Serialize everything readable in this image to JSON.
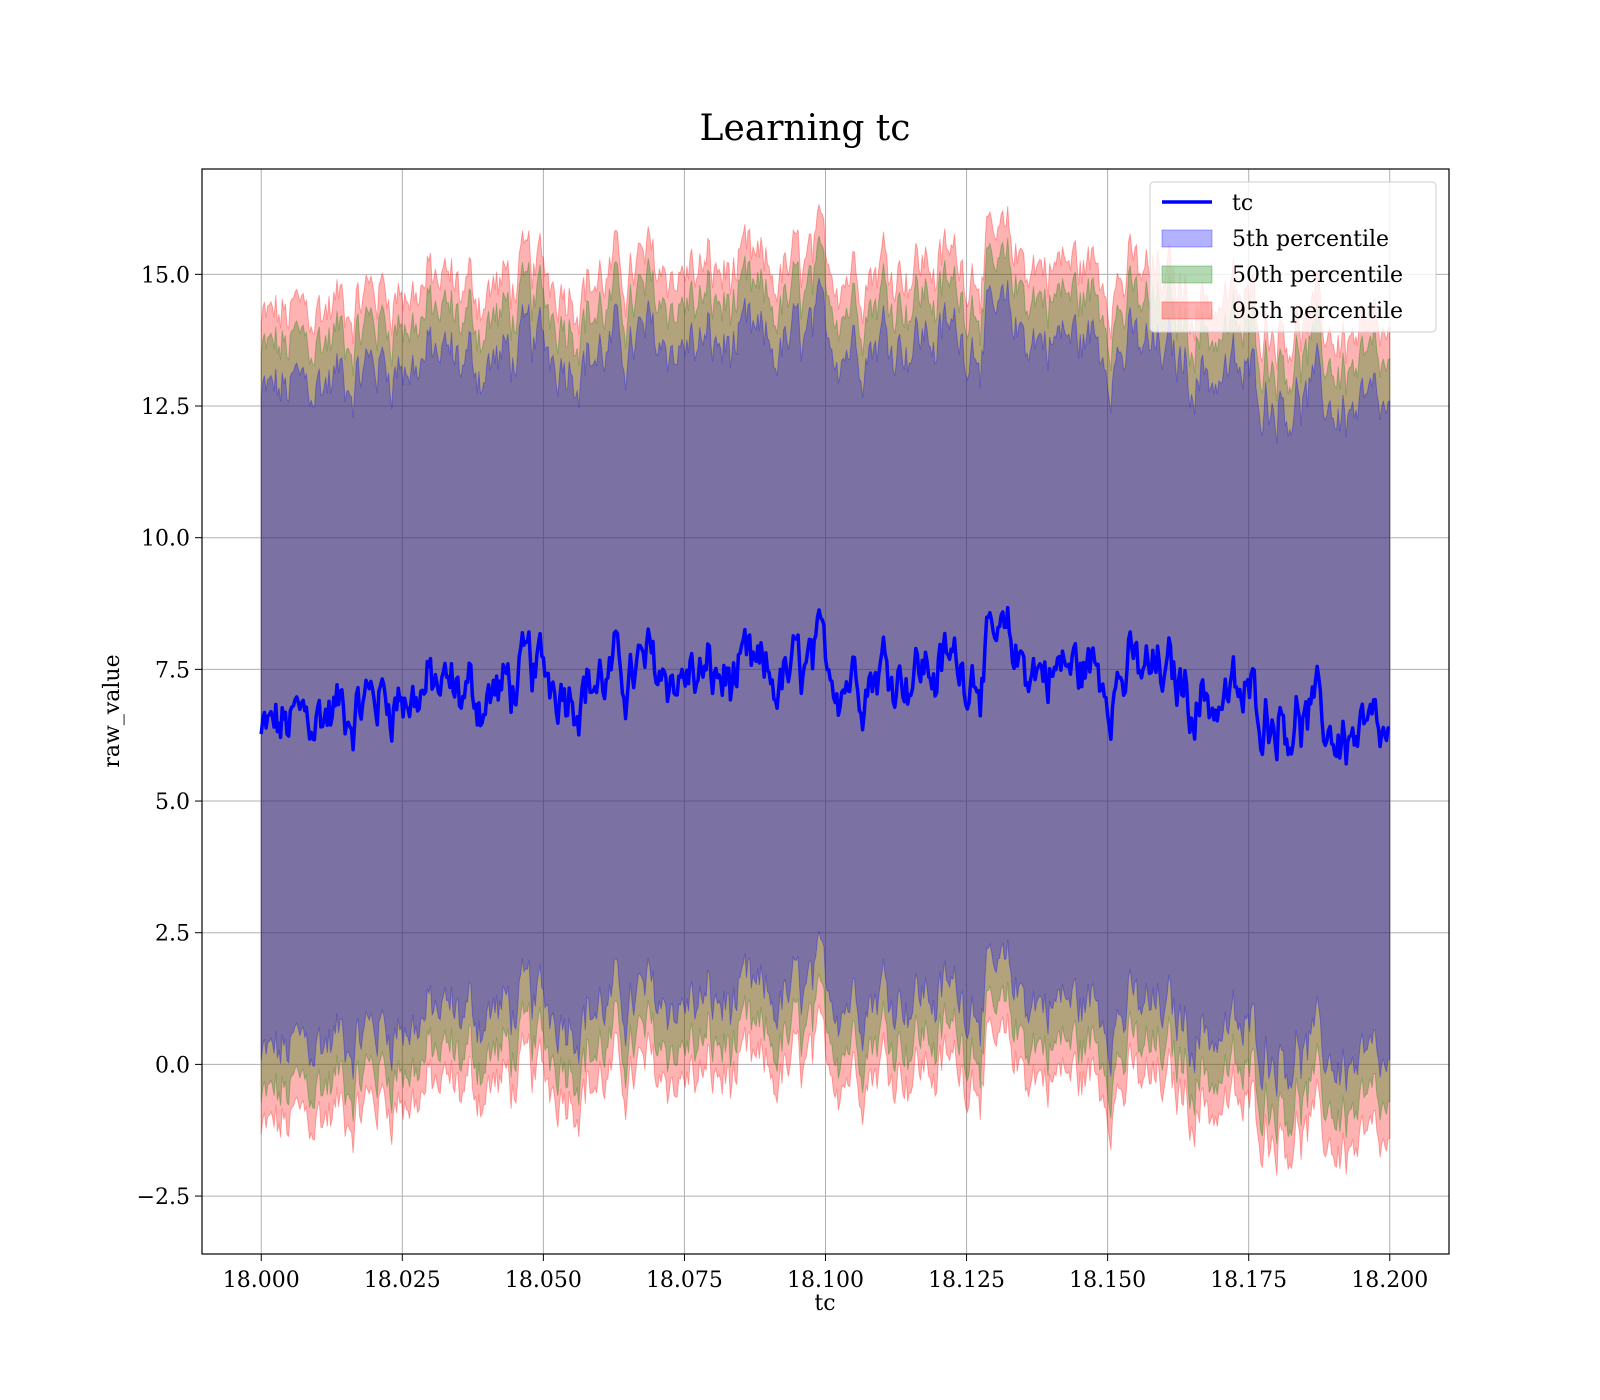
{
  "chart_data": {
    "type": "area",
    "title": "Learning tc",
    "xlabel": "tc",
    "ylabel": "raw_value",
    "xlim": [
      17.9895,
      18.2105
    ],
    "ylim": [
      -3.6,
      17.0
    ],
    "grid": true,
    "legend_position": "top-right",
    "x_ticks": [
      {
        "value": 18.0,
        "label": "18.000"
      },
      {
        "value": 18.025,
        "label": "18.025"
      },
      {
        "value": 18.05,
        "label": "18.050"
      },
      {
        "value": 18.075,
        "label": "18.075"
      },
      {
        "value": 18.1,
        "label": "18.100"
      },
      {
        "value": 18.125,
        "label": "18.125"
      },
      {
        "value": 18.15,
        "label": "18.150"
      },
      {
        "value": 18.175,
        "label": "18.175"
      },
      {
        "value": 18.2,
        "label": "18.200"
      }
    ],
    "y_ticks": [
      {
        "value": -2.5,
        "label": "−2.5"
      },
      {
        "value": 0.0,
        "label": "0.0"
      },
      {
        "value": 2.5,
        "label": "2.5"
      },
      {
        "value": 5.0,
        "label": "5.0"
      },
      {
        "value": 7.5,
        "label": "7.5"
      },
      {
        "value": 10.0,
        "label": "10.0"
      },
      {
        "value": 12.5,
        "label": "12.5"
      },
      {
        "value": 15.0,
        "label": "15.0"
      }
    ],
    "x": [
      18.0,
      18.01,
      18.02,
      18.03,
      18.04,
      18.05,
      18.06,
      18.07,
      18.08,
      18.09,
      18.1,
      18.11,
      18.12,
      18.13,
      18.14,
      18.15,
      18.16,
      18.17,
      18.18,
      18.19,
      18.2
    ],
    "series": [
      {
        "name": "tc",
        "kind": "line",
        "color": "#0000ff",
        "values": [
          6.2,
          6.6,
          7.0,
          7.1,
          7.0,
          7.4,
          7.3,
          7.45,
          7.3,
          7.2,
          7.5,
          7.6,
          7.5,
          7.8,
          7.5,
          7.5,
          7.3,
          6.9,
          6.8,
          6.3,
          5.9
        ]
      },
      {
        "name": "5th percentile",
        "kind": "band",
        "color": "#0000ff",
        "lower": [
          0.0,
          0.4,
          0.7,
          0.9,
          1.0,
          1.1,
          1.1,
          1.2,
          1.1,
          1.1,
          1.4,
          1.5,
          1.3,
          1.5,
          1.2,
          1.1,
          0.9,
          0.6,
          0.4,
          0.1,
          -0.4
        ],
        "upper": [
          12.6,
          12.9,
          13.3,
          13.4,
          13.3,
          13.6,
          13.5,
          13.7,
          13.6,
          13.5,
          13.8,
          13.9,
          13.8,
          14.0,
          13.8,
          13.7,
          13.4,
          13.1,
          12.8,
          12.5,
          12.1
        ]
      },
      {
        "name": "50th percentile",
        "kind": "band",
        "color": "#008000",
        "lower": [
          -0.8,
          -0.4,
          -0.1,
          0.1,
          0.2,
          0.3,
          0.3,
          0.4,
          0.3,
          0.3,
          0.6,
          0.7,
          0.5,
          0.7,
          0.4,
          0.3,
          0.1,
          -0.2,
          -0.5,
          -0.8,
          -1.2
        ],
        "upper": [
          13.4,
          13.7,
          14.1,
          14.2,
          14.1,
          14.4,
          14.3,
          14.5,
          14.4,
          14.3,
          14.6,
          14.7,
          14.6,
          14.8,
          14.6,
          14.5,
          14.2,
          13.9,
          13.6,
          13.3,
          12.9
        ]
      },
      {
        "name": "95th percentile",
        "kind": "band",
        "color": "#ff0000",
        "lower": [
          -1.4,
          -1.0,
          -0.7,
          -0.5,
          -0.4,
          -0.3,
          -0.3,
          -0.2,
          -0.3,
          -0.3,
          0.0,
          0.1,
          -0.1,
          0.1,
          -0.2,
          -0.3,
          -0.5,
          -0.8,
          -1.1,
          -1.5,
          -1.9
        ],
        "upper": [
          14.0,
          14.3,
          14.7,
          14.8,
          14.7,
          15.0,
          14.9,
          15.1,
          15.0,
          14.9,
          15.2,
          15.3,
          15.2,
          15.4,
          15.2,
          15.1,
          14.8,
          14.5,
          14.2,
          13.9,
          13.5
        ]
      }
    ]
  }
}
